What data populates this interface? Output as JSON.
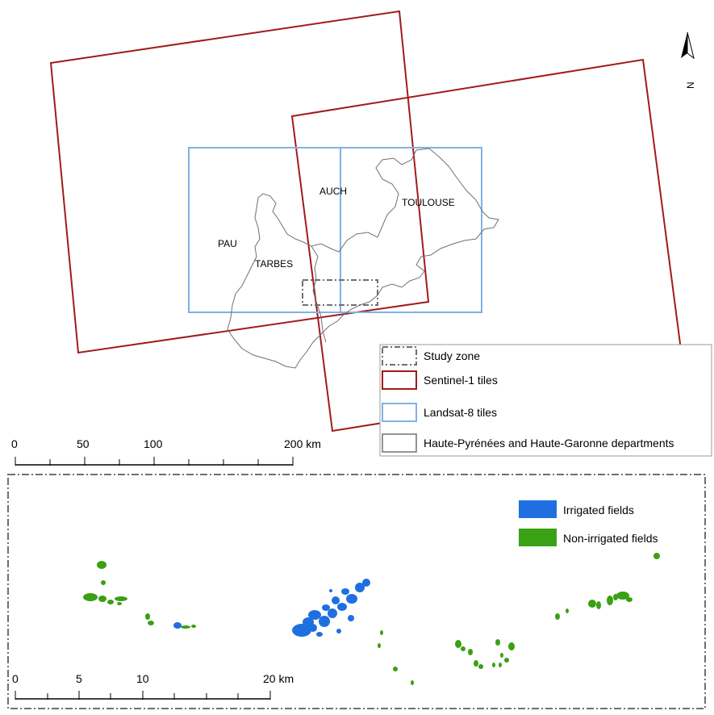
{
  "north_arrow": {
    "icon": "north-arrow-icon",
    "label": "N"
  },
  "cities": [
    "AUCH",
    "TOULOUSE",
    "PAU",
    "TARBES"
  ],
  "legend_top": [
    {
      "label": "Study zone",
      "style": "dash-dot",
      "color": "#707070"
    },
    {
      "label": "Sentinel-1 tiles",
      "style": "solid",
      "color": "#a31a1a"
    },
    {
      "label": "Landsat-8 tiles",
      "style": "solid",
      "color": "#7fb2e5"
    },
    {
      "label": "Haute-Pyrénées and Haute-Garonne departments",
      "style": "solid",
      "color": "#707070"
    }
  ],
  "scale_top": {
    "ticks": [
      "0",
      "50",
      "100",
      "200 km"
    ]
  },
  "legend_bottom": [
    {
      "label": "Irrigated fields",
      "color": "#1f6fe0"
    },
    {
      "label": "Non-irrigated  fields",
      "color": "#3aa014"
    }
  ],
  "scale_bottom": {
    "ticks": [
      "0",
      "5",
      "10",
      "20 km"
    ]
  }
}
